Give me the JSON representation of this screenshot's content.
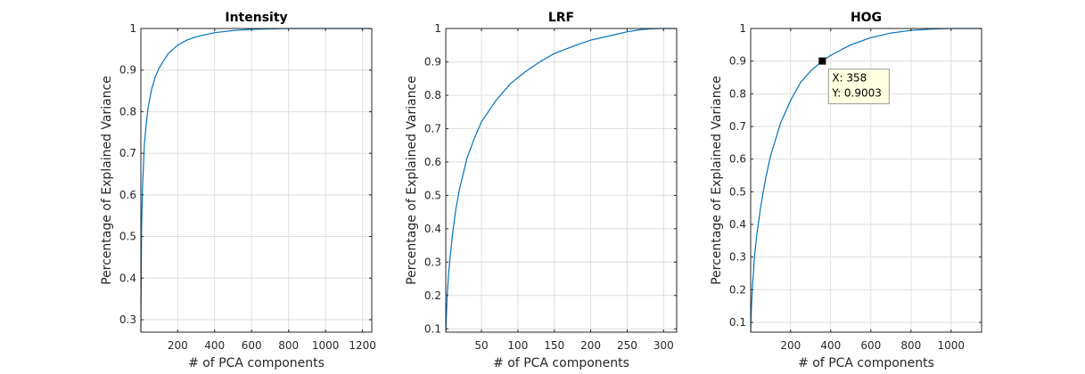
{
  "colors": {
    "line": "#0072BD",
    "grid": "#DEDEDE",
    "axis": "#262626",
    "tooltip_bg": "#FFFFE1",
    "tooltip_border": "#9D9D9D"
  },
  "chart_data": [
    {
      "type": "line",
      "title": "Intensity",
      "xlabel": "# of PCA components",
      "ylabel": "Percentage of Explained Variance",
      "xlim": [
        1,
        1250
      ],
      "ylim": [
        0.27,
        1.0
      ],
      "xticks": [
        200,
        400,
        600,
        800,
        1000,
        1200
      ],
      "yticks": [
        0.3,
        0.4,
        0.5,
        0.6,
        0.7,
        0.8,
        0.9,
        1
      ],
      "grid": true,
      "series": [
        {
          "x": [
            1,
            5,
            10,
            20,
            30,
            40,
            60,
            80,
            100,
            120,
            150,
            200,
            250,
            300,
            400,
            500,
            600,
            800,
            1000,
            1250
          ],
          "values": [
            0.27,
            0.52,
            0.62,
            0.72,
            0.77,
            0.81,
            0.855,
            0.885,
            0.905,
            0.92,
            0.94,
            0.96,
            0.972,
            0.98,
            0.99,
            0.995,
            0.998,
            1.0,
            1.0,
            1.0
          ]
        }
      ]
    },
    {
      "type": "line",
      "title": "LRF",
      "xlabel": "# of PCA components",
      "ylabel": "Percentage of Explained Variance",
      "xlim": [
        1,
        318
      ],
      "ylim": [
        0.09,
        1.0
      ],
      "xticks": [
        50,
        100,
        150,
        200,
        250,
        300
      ],
      "yticks": [
        0.1,
        0.2,
        0.3,
        0.4,
        0.5,
        0.6,
        0.7,
        0.8,
        0.9,
        1
      ],
      "grid": true,
      "series": [
        {
          "x": [
            1,
            3,
            5,
            10,
            15,
            20,
            30,
            40,
            50,
            70,
            90,
            110,
            130,
            150,
            180,
            200,
            230,
            250,
            270,
            290,
            318
          ],
          "values": [
            0.09,
            0.2,
            0.27,
            0.38,
            0.46,
            0.52,
            0.61,
            0.67,
            0.72,
            0.785,
            0.835,
            0.87,
            0.9,
            0.925,
            0.95,
            0.965,
            0.98,
            0.99,
            0.997,
            1.0,
            1.0
          ]
        }
      ]
    },
    {
      "type": "line",
      "title": "HOG",
      "xlabel": "# of PCA components",
      "ylabel": "Percentage of Explained Variance",
      "xlim": [
        1,
        1152
      ],
      "ylim": [
        0.07,
        1.0
      ],
      "xticks": [
        200,
        400,
        600,
        800,
        1000
      ],
      "yticks": [
        0.1,
        0.2,
        0.3,
        0.4,
        0.5,
        0.6,
        0.7,
        0.8,
        0.9,
        1
      ],
      "grid": true,
      "series": [
        {
          "x": [
            1,
            5,
            10,
            20,
            30,
            50,
            75,
            100,
            150,
            200,
            250,
            300,
            358,
            400,
            500,
            600,
            700,
            800,
            900,
            1000,
            1152
          ],
          "values": [
            0.07,
            0.15,
            0.21,
            0.3,
            0.36,
            0.45,
            0.54,
            0.61,
            0.71,
            0.78,
            0.835,
            0.87,
            0.9003,
            0.918,
            0.95,
            0.972,
            0.986,
            0.994,
            0.998,
            1.0,
            1.0
          ]
        }
      ],
      "datatip": {
        "x": 358,
        "y": 0.9003,
        "x_text": "X: 358",
        "y_text": "Y: 0.9003"
      }
    }
  ]
}
